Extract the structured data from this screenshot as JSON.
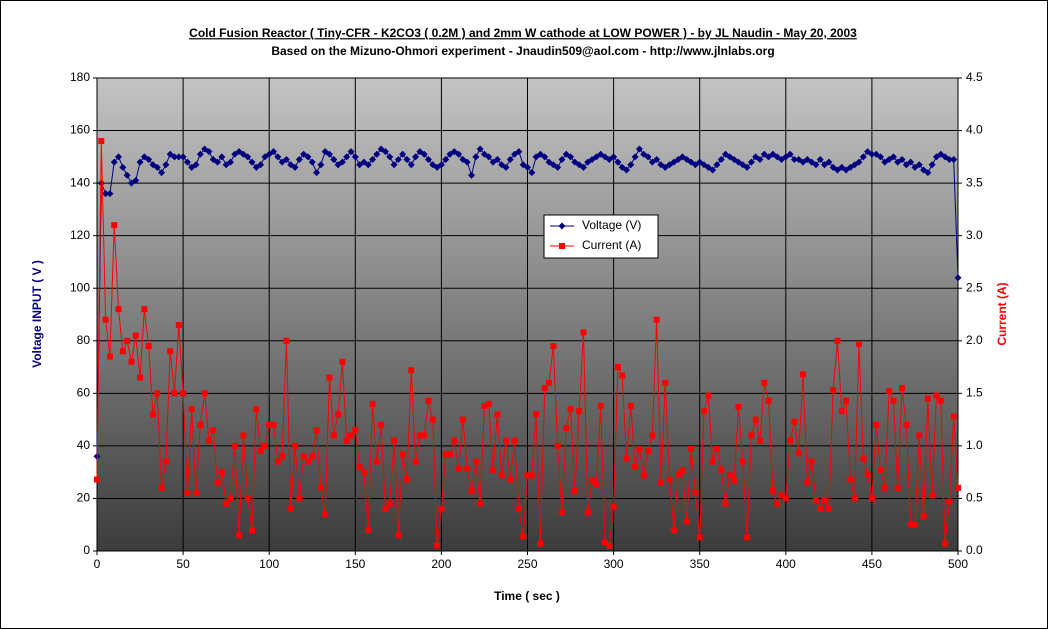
{
  "chart_data": {
    "type": "line",
    "title": "Cold Fusion Reactor ( Tiny-CFR - K2CO3 ( 0.2M ) and 2mm W cathode at LOW POWER ) - by JL Naudin - May 20, 2003",
    "subtitle": "Based on the Mizuno-Ohmori experiment - Jnaudin509@aol.com - http://www.jlnlabs.org",
    "xlabel": "Time ( sec )",
    "ylabel": "Voltage INPUT ( V )",
    "y2label": "Current (A)",
    "xlim": [
      0,
      500
    ],
    "xticks": [
      0,
      50,
      100,
      150,
      200,
      250,
      300,
      350,
      400,
      450,
      500
    ],
    "ylim": [
      0,
      180
    ],
    "yticks": [
      0,
      20,
      40,
      60,
      80,
      100,
      120,
      140,
      160,
      180
    ],
    "y2lim": [
      0,
      4.5
    ],
    "y2ticks": [
      {
        "value": 0,
        "label": "0.0"
      },
      0.5,
      {
        "value": 1,
        "label": "1.0"
      },
      1.5,
      {
        "value": 2,
        "label": "2.0"
      },
      2.5,
      {
        "value": 3,
        "label": "3.0"
      },
      3.5,
      {
        "value": 4,
        "label": "4.0"
      },
      4.5
    ],
    "grid": true,
    "legend": "center",
    "x": [
      0,
      2.5,
      5,
      7.5,
      10,
      12.5,
      15,
      17.5,
      20,
      22.5,
      25,
      27.5,
      30,
      32.5,
      35,
      37.5,
      40,
      42.5,
      45,
      47.5,
      50,
      52.5,
      55,
      57.5,
      60,
      62.5,
      65,
      67.5,
      70,
      72.5,
      75,
      77.5,
      80,
      82.5,
      85,
      87.5,
      90,
      92.5,
      95,
      97.5,
      100,
      102.5,
      105,
      107.5,
      110,
      112.5,
      115,
      117.5,
      120,
      122.5,
      125,
      127.5,
      130,
      132.5,
      135,
      137.5,
      140,
      142.5,
      145,
      147.5,
      150,
      152.5,
      155,
      157.5,
      160,
      162.5,
      165,
      167.5,
      170,
      172.5,
      175,
      177.5,
      180,
      182.5,
      185,
      187.5,
      190,
      192.5,
      195,
      197.5,
      200,
      202.5,
      205,
      207.5,
      210,
      212.5,
      215,
      217.5,
      220,
      222.5,
      225,
      227.5,
      230,
      232.5,
      235,
      237.5,
      240,
      242.5,
      245,
      247.5,
      250,
      252.5,
      255,
      257.5,
      260,
      262.5,
      265,
      267.5,
      270,
      272.5,
      275,
      277.5,
      280,
      282.5,
      285,
      287.5,
      290,
      292.5,
      295,
      297.5,
      300,
      302.5,
      305,
      307.5,
      310,
      312.5,
      315,
      317.5,
      320,
      322.5,
      325,
      327.5,
      330,
      332.5,
      335,
      337.5,
      340,
      342.5,
      345,
      347.5,
      350,
      352.5,
      355,
      357.5,
      360,
      362.5,
      365,
      367.5,
      370,
      372.5,
      375,
      377.5,
      380,
      382.5,
      385,
      387.5,
      390,
      392.5,
      395,
      397.5,
      400,
      402.5,
      405,
      407.5,
      410,
      412.5,
      415,
      417.5,
      420,
      422.5,
      425,
      427.5,
      430,
      432.5,
      435,
      437.5,
      440,
      442.5,
      445,
      447.5,
      450,
      452.5,
      455,
      457.5,
      460,
      462.5,
      465,
      467.5,
      470,
      472.5,
      475,
      477.5,
      480,
      482.5,
      485,
      487.5,
      490,
      492.5,
      495,
      497.5,
      500
    ],
    "series": [
      {
        "name": "Voltage (V)",
        "color": "#000080",
        "marker": "diamond",
        "axis": "y",
        "values": [
          36,
          140,
          136,
          136,
          148,
          150,
          146,
          143,
          140,
          141,
          148,
          150,
          149,
          147,
          146,
          144,
          147,
          151,
          150,
          150,
          150,
          148,
          146,
          147,
          151,
          153,
          152,
          149,
          148,
          150,
          147,
          148,
          151,
          152,
          151,
          150,
          148,
          146,
          147,
          150,
          151,
          152,
          150,
          148,
          149,
          147,
          146,
          149,
          151,
          150,
          148,
          144,
          147,
          152,
          151,
          149,
          147,
          148,
          150,
          152,
          150,
          147,
          148,
          147,
          149,
          151,
          153,
          152,
          150,
          147,
          149,
          151,
          149,
          147,
          150,
          152,
          151,
          149,
          147,
          146,
          147,
          149,
          151,
          152,
          151,
          149,
          148,
          143,
          150,
          153,
          151,
          150,
          148,
          149,
          147,
          146,
          149,
          151,
          152,
          147,
          146,
          144,
          150,
          151,
          150,
          148,
          147,
          146,
          149,
          151,
          150,
          148,
          147,
          146,
          148,
          149,
          150,
          151,
          150,
          149,
          150,
          148,
          146,
          145,
          147,
          150,
          153,
          151,
          150,
          148,
          149,
          147,
          146,
          147,
          148,
          149,
          150,
          149,
          148,
          147,
          148,
          147,
          146,
          145,
          147,
          149,
          151,
          150,
          149,
          148,
          147,
          146,
          148,
          150,
          149,
          151,
          150,
          151,
          150,
          149,
          150,
          151,
          149,
          149,
          148,
          149,
          148,
          147,
          149,
          147,
          148,
          146,
          145,
          146,
          145,
          146,
          147,
          148,
          150,
          152,
          151,
          151,
          150,
          148,
          149,
          150,
          148,
          149,
          147,
          148,
          146,
          147,
          145,
          144,
          147,
          150,
          151,
          150,
          149,
          149,
          104
        ]
      },
      {
        "name": "Current (A)",
        "color": "#ff0000",
        "marker": "square",
        "axis": "y2",
        "values": [
          0.68,
          3.9,
          2.2,
          1.85,
          3.1,
          2.3,
          1.9,
          2.0,
          1.8,
          2.05,
          1.65,
          2.3,
          1.95,
          1.3,
          1.5,
          0.6,
          0.85,
          1.9,
          1.5,
          2.15,
          1.5,
          0.55,
          1.35,
          0.55,
          1.2,
          1.5,
          1.05,
          1.15,
          0.65,
          0.75,
          0.45,
          0.5,
          1.0,
          0.15,
          1.1,
          0.5,
          0.2,
          1.35,
          0.95,
          1.0,
          1.2,
          1.2,
          0.85,
          0.9,
          2.0,
          0.4,
          1.0,
          0.5,
          0.9,
          0.85,
          0.9,
          1.15,
          0.6,
          0.35,
          1.65,
          1.1,
          1.3,
          1.8,
          1.05,
          1.1,
          1.15,
          0.8,
          0.75,
          0.2,
          1.4,
          0.85,
          1.2,
          0.4,
          0.45,
          1.05,
          0.15,
          0.92,
          0.68,
          1.72,
          0.85,
          1.1,
          1.1,
          1.43,
          1.25,
          0.05,
          0.4,
          0.92,
          0.92,
          1.05,
          0.78,
          1.25,
          0.78,
          0.57,
          0.85,
          0.45,
          1.38,
          1.4,
          0.77,
          1.3,
          0.72,
          1.05,
          0.68,
          1.05,
          0.4,
          0.14,
          0.72,
          0.72,
          1.3,
          0.07,
          1.55,
          1.6,
          1.95,
          1.0,
          0.37,
          1.17,
          1.35,
          0.57,
          1.33,
          2.08,
          0.37,
          0.67,
          0.63,
          1.38,
          0.08,
          0.05,
          0.42,
          1.75,
          1.67,
          0.88,
          1.38,
          0.8,
          0.97,
          0.72,
          0.95,
          1.1,
          2.2,
          0.65,
          1.6,
          0.68,
          0.2,
          0.73,
          0.77,
          0.28,
          0.97,
          0.56,
          0.13,
          1.33,
          1.48,
          0.85,
          0.97,
          0.77,
          0.45,
          0.72,
          0.67,
          1.37,
          0.85,
          0.13,
          1.1,
          1.25,
          1.05,
          1.6,
          1.43,
          0.57,
          0.45,
          0.53,
          0.5,
          1.05,
          1.23,
          0.93,
          1.68,
          0.65,
          0.85,
          0.48,
          0.4,
          0.48,
          0.4,
          1.53,
          2.0,
          1.33,
          1.43,
          0.68,
          0.5,
          1.97,
          0.88,
          0.73,
          0.5,
          1.2,
          0.77,
          0.6,
          1.52,
          1.43,
          0.6,
          1.55,
          1.2,
          0.25,
          0.25,
          1.1,
          0.33,
          1.45,
          0.53,
          1.48,
          1.43,
          0.07,
          0.47,
          1.28,
          0.6
        ]
      }
    ]
  }
}
